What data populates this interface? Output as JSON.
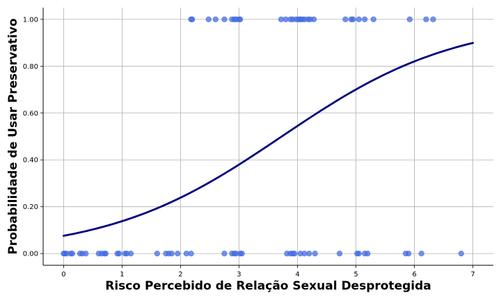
{
  "chart_data": {
    "type": "scatter",
    "title": "",
    "xlabel": "Risco Percebido de Relação Sexual Desprotegida",
    "ylabel": "Probabilidade de Usar Preservativo",
    "xlim": [
      -0.35,
      7.35
    ],
    "ylim": [
      -0.05,
      1.05
    ],
    "x_ticks": [
      0,
      1,
      2,
      3,
      4,
      5,
      6,
      7
    ],
    "x_tick_labels": [
      "0",
      "1",
      "2",
      "3",
      "4",
      "5",
      "6",
      "7"
    ],
    "y_ticks": [
      0.0,
      0.2,
      0.4,
      0.6,
      0.8,
      1.0
    ],
    "y_tick_labels": [
      "0.00",
      "0.20",
      "0.40",
      "0.60",
      "0.80",
      "1.00"
    ],
    "grid": true,
    "legend": "none",
    "series": [
      {
        "type": "scatter",
        "color": "#4169E1",
        "points": [
          [
            0.0,
            0
          ],
          [
            0.02,
            0
          ],
          [
            0.05,
            0
          ],
          [
            0.12,
            0
          ],
          [
            0.15,
            0
          ],
          [
            0.28,
            0
          ],
          [
            0.32,
            0
          ],
          [
            0.38,
            0
          ],
          [
            0.6,
            0
          ],
          [
            0.65,
            0
          ],
          [
            0.7,
            0
          ],
          [
            0.72,
            0
          ],
          [
            0.92,
            0
          ],
          [
            0.95,
            0
          ],
          [
            1.05,
            0
          ],
          [
            1.08,
            0
          ],
          [
            1.15,
            0
          ],
          [
            1.6,
            0
          ],
          [
            1.75,
            0
          ],
          [
            1.8,
            0
          ],
          [
            1.85,
            0
          ],
          [
            1.95,
            0
          ],
          [
            2.1,
            0
          ],
          [
            2.18,
            0
          ],
          [
            2.75,
            0
          ],
          [
            2.88,
            0
          ],
          [
            2.92,
            0
          ],
          [
            2.95,
            0
          ],
          [
            3.02,
            0
          ],
          [
            3.05,
            0
          ],
          [
            3.82,
            0
          ],
          [
            3.88,
            0
          ],
          [
            3.92,
            0
          ],
          [
            3.95,
            0
          ],
          [
            4.05,
            0
          ],
          [
            4.12,
            0
          ],
          [
            4.2,
            0
          ],
          [
            4.3,
            0
          ],
          [
            4.72,
            0
          ],
          [
            5.02,
            0
          ],
          [
            5.05,
            0
          ],
          [
            5.15,
            0
          ],
          [
            5.2,
            0
          ],
          [
            5.85,
            0
          ],
          [
            5.9,
            0
          ],
          [
            6.12,
            0
          ],
          [
            6.8,
            0
          ],
          [
            2.18,
            1
          ],
          [
            2.2,
            1
          ],
          [
            2.48,
            1
          ],
          [
            2.6,
            1
          ],
          [
            2.75,
            1
          ],
          [
            2.88,
            1
          ],
          [
            2.92,
            1
          ],
          [
            2.95,
            1
          ],
          [
            3.0,
            1
          ],
          [
            3.02,
            1
          ],
          [
            3.72,
            1
          ],
          [
            3.8,
            1
          ],
          [
            3.88,
            1
          ],
          [
            3.92,
            1
          ],
          [
            3.98,
            1
          ],
          [
            4.02,
            1
          ],
          [
            4.05,
            1
          ],
          [
            4.08,
            1
          ],
          [
            4.12,
            1
          ],
          [
            4.18,
            1
          ],
          [
            4.22,
            1
          ],
          [
            4.28,
            1
          ],
          [
            4.82,
            1
          ],
          [
            4.92,
            1
          ],
          [
            4.95,
            1
          ],
          [
            5.05,
            1
          ],
          [
            5.15,
            1
          ],
          [
            5.3,
            1
          ],
          [
            5.92,
            1
          ],
          [
            6.2,
            1
          ],
          [
            6.32,
            1
          ]
        ]
      },
      {
        "type": "line",
        "color": "#000080",
        "curve": "logistic",
        "intercept": -2.5,
        "slope": 0.67,
        "x_range": [
          0,
          7
        ]
      }
    ]
  }
}
